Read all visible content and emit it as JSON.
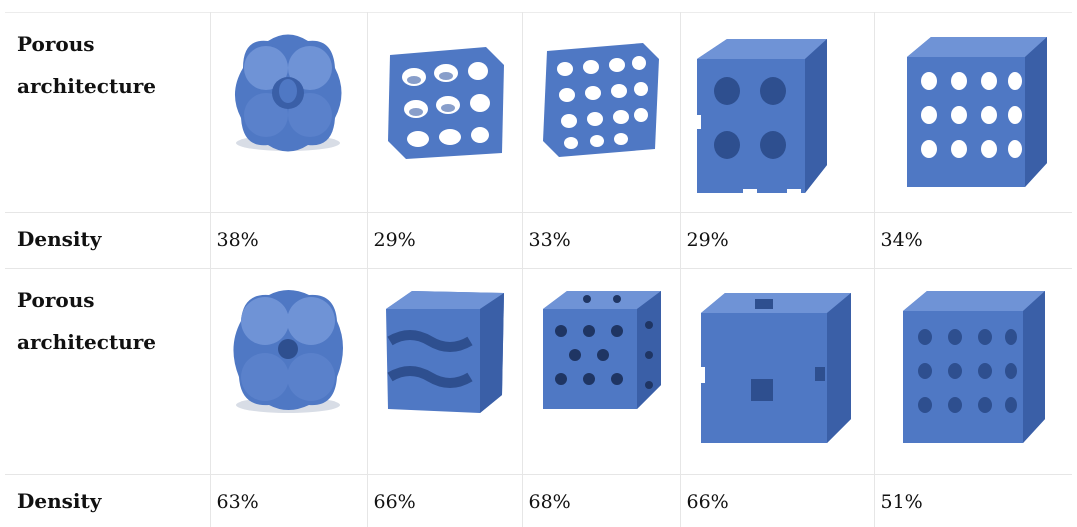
{
  "rows": [
    {
      "label": "Porous architecture",
      "images": [
        "gyroid-38-icon",
        "gyroid-sheet-29-icon",
        "gyroid-sheet-33-icon",
        "cubic-lattice-29-icon",
        "cubic-lattice-34-icon"
      ]
    },
    {
      "label": "Density",
      "values": [
        "38%",
        "29%",
        "33%",
        "29%",
        "34%"
      ]
    },
    {
      "label": "Porous architecture",
      "images": [
        "gyroid-63-icon",
        "gyroid-sheet-66-icon",
        "perforated-cube-68-icon",
        "cubic-lattice-66-icon",
        "cubic-lattice-51-icon"
      ]
    },
    {
      "label": "Density",
      "values": [
        "63%",
        "66%",
        "68%",
        "66%",
        "51%"
      ]
    }
  ],
  "colors": {
    "scaffold": "#4f78c4",
    "scaffold_dark": "#3a5fa7",
    "scaffold_light": "#6f93d6",
    "grid_line": "#e6e6e6"
  }
}
